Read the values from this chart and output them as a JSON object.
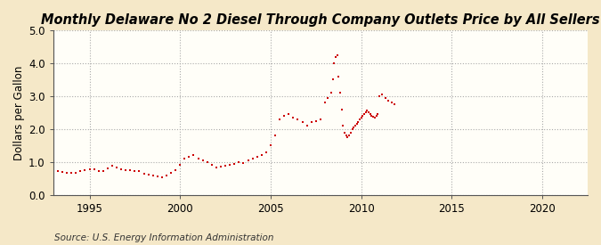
{
  "title": "Monthly Delaware No 2 Diesel Through Company Outlets Price by All Sellers",
  "ylabel": "Dollars per Gallon",
  "source": "Source: U.S. Energy Information Administration",
  "xlim": [
    1993.0,
    2022.5
  ],
  "ylim": [
    0.0,
    5.0
  ],
  "xticks": [
    1995,
    2000,
    2005,
    2010,
    2015,
    2020
  ],
  "yticks": [
    0.0,
    1.0,
    2.0,
    3.0,
    4.0,
    5.0
  ],
  "figure_bg": "#f5e8c8",
  "axes_bg": "#fffef8",
  "line_color": "#cc0000",
  "title_fontsize": 10.5,
  "label_fontsize": 8.5,
  "tick_fontsize": 8.5,
  "source_fontsize": 7.5,
  "data": [
    [
      1993.25,
      0.72
    ],
    [
      1993.5,
      0.7
    ],
    [
      1993.75,
      0.68
    ],
    [
      1994.0,
      0.67
    ],
    [
      1994.25,
      0.68
    ],
    [
      1994.5,
      0.72
    ],
    [
      1994.75,
      0.75
    ],
    [
      1995.0,
      0.78
    ],
    [
      1995.25,
      0.77
    ],
    [
      1995.5,
      0.73
    ],
    [
      1995.75,
      0.72
    ],
    [
      1996.0,
      0.8
    ],
    [
      1996.25,
      0.88
    ],
    [
      1996.5,
      0.82
    ],
    [
      1996.75,
      0.78
    ],
    [
      1997.0,
      0.76
    ],
    [
      1997.25,
      0.74
    ],
    [
      1997.5,
      0.73
    ],
    [
      1997.75,
      0.72
    ],
    [
      1998.0,
      0.65
    ],
    [
      1998.25,
      0.62
    ],
    [
      1998.5,
      0.58
    ],
    [
      1998.75,
      0.55
    ],
    [
      1999.0,
      0.53
    ],
    [
      1999.25,
      0.6
    ],
    [
      1999.5,
      0.68
    ],
    [
      1999.75,
      0.75
    ],
    [
      2000.0,
      0.9
    ],
    [
      2000.25,
      1.1
    ],
    [
      2000.5,
      1.15
    ],
    [
      2000.75,
      1.2
    ],
    [
      2001.0,
      1.1
    ],
    [
      2001.25,
      1.05
    ],
    [
      2001.5,
      1.0
    ],
    [
      2001.75,
      0.9
    ],
    [
      2002.0,
      0.82
    ],
    [
      2002.25,
      0.85
    ],
    [
      2002.5,
      0.88
    ],
    [
      2002.75,
      0.9
    ],
    [
      2003.0,
      0.95
    ],
    [
      2003.25,
      1.0
    ],
    [
      2003.5,
      0.98
    ],
    [
      2003.75,
      1.05
    ],
    [
      2004.0,
      1.1
    ],
    [
      2004.25,
      1.15
    ],
    [
      2004.5,
      1.2
    ],
    [
      2004.75,
      1.3
    ],
    [
      2005.0,
      1.5
    ],
    [
      2005.25,
      1.8
    ],
    [
      2005.5,
      2.3
    ],
    [
      2005.75,
      2.4
    ],
    [
      2006.0,
      2.45
    ],
    [
      2006.25,
      2.35
    ],
    [
      2006.5,
      2.3
    ],
    [
      2006.75,
      2.2
    ],
    [
      2007.0,
      2.1
    ],
    [
      2007.25,
      2.2
    ],
    [
      2007.5,
      2.25
    ],
    [
      2007.75,
      2.3
    ],
    [
      2008.0,
      2.8
    ],
    [
      2008.17,
      2.95
    ],
    [
      2008.33,
      3.1
    ],
    [
      2008.42,
      3.5
    ],
    [
      2008.5,
      4.0
    ],
    [
      2008.58,
      4.2
    ],
    [
      2008.67,
      4.25
    ],
    [
      2008.75,
      3.6
    ],
    [
      2008.83,
      3.1
    ],
    [
      2008.92,
      2.6
    ],
    [
      2009.0,
      2.1
    ],
    [
      2009.08,
      1.9
    ],
    [
      2009.17,
      1.8
    ],
    [
      2009.25,
      1.75
    ],
    [
      2009.33,
      1.8
    ],
    [
      2009.42,
      1.9
    ],
    [
      2009.5,
      2.0
    ],
    [
      2009.58,
      2.05
    ],
    [
      2009.67,
      2.1
    ],
    [
      2009.75,
      2.15
    ],
    [
      2009.83,
      2.2
    ],
    [
      2009.92,
      2.3
    ],
    [
      2010.0,
      2.35
    ],
    [
      2010.08,
      2.4
    ],
    [
      2010.17,
      2.45
    ],
    [
      2010.25,
      2.5
    ],
    [
      2010.33,
      2.55
    ],
    [
      2010.42,
      2.5
    ],
    [
      2010.5,
      2.45
    ],
    [
      2010.58,
      2.4
    ],
    [
      2010.67,
      2.38
    ],
    [
      2010.75,
      2.35
    ],
    [
      2010.83,
      2.4
    ],
    [
      2010.92,
      2.45
    ],
    [
      2011.0,
      3.0
    ],
    [
      2011.17,
      3.05
    ],
    [
      2011.33,
      2.95
    ],
    [
      2011.5,
      2.85
    ],
    [
      2011.67,
      2.8
    ],
    [
      2011.83,
      2.75
    ]
  ]
}
